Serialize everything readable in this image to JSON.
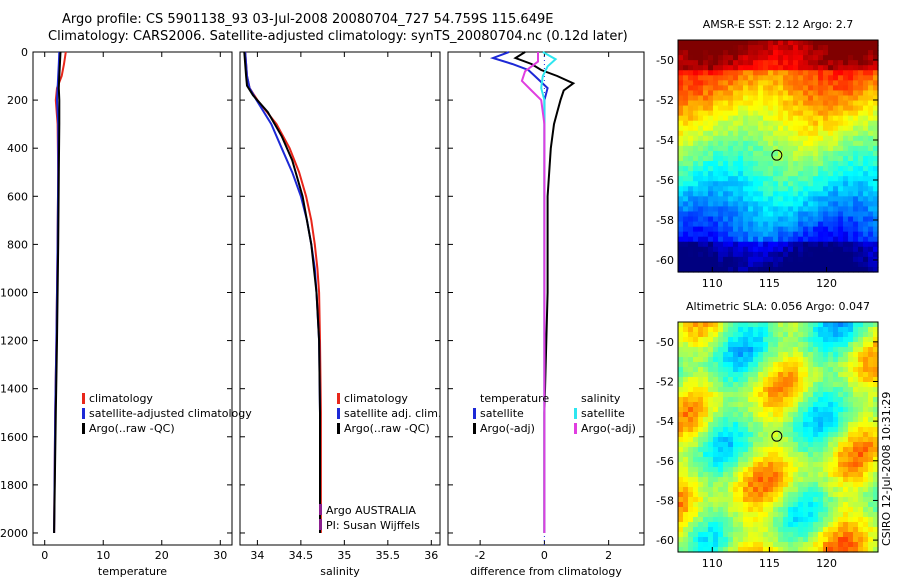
{
  "header": {
    "line1": "Argo profile: CS 5901138_93 03-Jul-2008 20080704_727 54.759S 115.649E",
    "line2": "Climatology: CARS2006. Satellite-adjusted climatology: synTS_20080704.nc (0.12d later)"
  },
  "colors": {
    "clim": "#e8261a",
    "sat": "#1d29d6",
    "argo": "#000000",
    "sal_sat": "#2ee6f0",
    "sal_argo": "#e03ee0",
    "pi": "#8a1f8f"
  },
  "depth_axis": {
    "ylim": [
      0,
      2050
    ],
    "ticks": [
      "0",
      "200",
      "400",
      "600",
      "800",
      "1000",
      "1200",
      "1400",
      "1600",
      "1800",
      "2000"
    ]
  },
  "credit": {
    "pi_line1": "Argo AUSTRALIA",
    "pi_line2": "PI: Susan Wijffels",
    "csiro": "CSIRO 12-Jul-2008 10:31:29"
  },
  "chart_data": [
    {
      "type": "line",
      "name": "temperature",
      "xlabel": "temperature",
      "xlim": [
        -2,
        32
      ],
      "xticks": [
        "0",
        "10",
        "20",
        "30"
      ],
      "legend": [
        "climatology",
        "satellite-adjusted climatology",
        "Argo(..raw -QC)"
      ],
      "series": [
        {
          "name": "climatology",
          "depth": [
            0,
            50,
            100,
            150,
            200,
            300,
            500,
            800,
            1200,
            1500,
            2000
          ],
          "values": [
            3.6,
            3.3,
            2.9,
            2.1,
            1.9,
            2.2,
            2.3,
            2.2,
            2.0,
            1.8,
            1.6
          ]
        },
        {
          "name": "satellite-adjusted climatology",
          "depth": [
            0,
            50,
            100,
            150,
            200,
            300,
            500,
            800,
            1200,
            1500,
            2000
          ],
          "values": [
            2.5,
            2.4,
            2.3,
            2.2,
            2.1,
            2.3,
            2.3,
            2.2,
            2.0,
            1.8,
            1.6
          ]
        },
        {
          "name": "Argo(..raw -QC)",
          "depth": [
            0,
            50,
            100,
            150,
            200,
            300,
            500,
            800,
            1200,
            1500,
            2000
          ],
          "values": [
            2.7,
            2.6,
            2.5,
            2.4,
            2.5,
            2.5,
            2.4,
            2.3,
            2.1,
            1.9,
            1.6
          ]
        }
      ]
    },
    {
      "type": "line",
      "name": "salinity",
      "xlabel": "salinity",
      "xlim": [
        33.8,
        36.1
      ],
      "xticks": [
        "34",
        "34.5",
        "35",
        "35.5",
        "36"
      ],
      "legend": [
        "climatology",
        "satellite adj. clim.",
        "Argo(..raw -QC)"
      ],
      "series": [
        {
          "name": "climatology",
          "depth": [
            0,
            50,
            100,
            150,
            200,
            300,
            400,
            500,
            600,
            700,
            800,
            900,
            1000,
            1200,
            1500,
            2000
          ],
          "values": [
            33.86,
            33.87,
            33.88,
            33.91,
            34.0,
            34.22,
            34.37,
            34.48,
            34.56,
            34.62,
            34.66,
            34.69,
            34.71,
            34.72,
            34.73,
            34.73
          ]
        },
        {
          "name": "satellite adj. clim.",
          "depth": [
            0,
            50,
            100,
            150,
            200,
            300,
            400,
            500,
            600,
            700,
            800,
            900,
            1000,
            1200,
            1500,
            2000
          ],
          "values": [
            33.86,
            33.87,
            33.88,
            33.91,
            33.99,
            34.16,
            34.28,
            34.4,
            34.5,
            34.57,
            34.62,
            34.66,
            34.68,
            34.71,
            34.72,
            34.72
          ]
        },
        {
          "name": "Argo(..raw -QC)",
          "depth": [
            0,
            50,
            100,
            140,
            180,
            250,
            350,
            450,
            600,
            800,
            1000,
            1200,
            1500,
            2000
          ],
          "values": [
            33.85,
            33.86,
            33.87,
            33.88,
            33.95,
            34.12,
            34.28,
            34.4,
            34.52,
            34.62,
            34.68,
            34.71,
            34.72,
            34.72
          ]
        }
      ]
    },
    {
      "type": "line",
      "name": "difference",
      "xlabel": "difference from climatology",
      "xlim": [
        -3.0,
        3.1
      ],
      "xticks": [
        "-2",
        "0",
        "2"
      ],
      "legend_temperature": [
        "temperature",
        "satellite",
        "Argo(-adj)"
      ],
      "legend_salinity": [
        "salinity",
        "satellite",
        "Argo(-adj)"
      ],
      "series": [
        {
          "name": "temperature satellite",
          "depth": [
            0,
            25,
            50,
            75,
            100,
            150,
            200,
            300,
            500,
            1000,
            1500,
            2000
          ],
          "values": [
            -1.1,
            -1.6,
            -1.0,
            -0.5,
            -0.3,
            0.1,
            0.0,
            0.0,
            0.0,
            0.0,
            0.0,
            0.0
          ]
        },
        {
          "name": "temperature Argo(-adj)",
          "depth": [
            0,
            25,
            50,
            75,
            100,
            130,
            160,
            200,
            250,
            300,
            400,
            600,
            1000,
            1500,
            2000
          ],
          "values": [
            -0.6,
            -0.9,
            -0.4,
            -0.1,
            0.4,
            0.9,
            0.6,
            0.5,
            0.4,
            0.3,
            0.2,
            0.1,
            0.1,
            0.0,
            0.0
          ]
        },
        {
          "name": "salinity satellite",
          "depth": [
            0,
            30,
            60,
            100,
            150,
            200,
            300,
            600,
            1000,
            1500,
            2000
          ],
          "values": [
            -0.05,
            0.35,
            0.1,
            -0.05,
            -0.1,
            0.0,
            0.0,
            0.0,
            0.0,
            0.0,
            0.0
          ]
        },
        {
          "name": "salinity Argo(-adj)",
          "depth": [
            0,
            40,
            80,
            120,
            160,
            200,
            300,
            600,
            1000,
            1500,
            2000
          ],
          "values": [
            -0.2,
            -0.2,
            -0.6,
            -0.7,
            -0.4,
            -0.1,
            0.0,
            0.0,
            0.0,
            0.0,
            0.0
          ]
        }
      ]
    },
    {
      "type": "heatmap",
      "name": "sst",
      "title": "AMSR-E SST: 2.12 Argo: 2.7",
      "xticks": [
        "110",
        "115",
        "120"
      ],
      "yticks": [
        "-50",
        "-52",
        "-54",
        "-56",
        "-58",
        "-60"
      ],
      "xlim": [
        107,
        124.5
      ],
      "ylim": [
        -60.6,
        -49
      ],
      "argo_position": [
        115.649,
        -54.759
      ]
    },
    {
      "type": "heatmap",
      "name": "sla",
      "title": "Altimetric SLA: 0.056 Argo: 0.047",
      "xticks": [
        "110",
        "115",
        "120"
      ],
      "yticks": [
        "-50",
        "-52",
        "-54",
        "-56",
        "-58",
        "-60"
      ],
      "xlim": [
        107,
        124.5
      ],
      "ylim": [
        -60.6,
        -49
      ],
      "argo_position": [
        115.649,
        -54.759
      ]
    }
  ]
}
